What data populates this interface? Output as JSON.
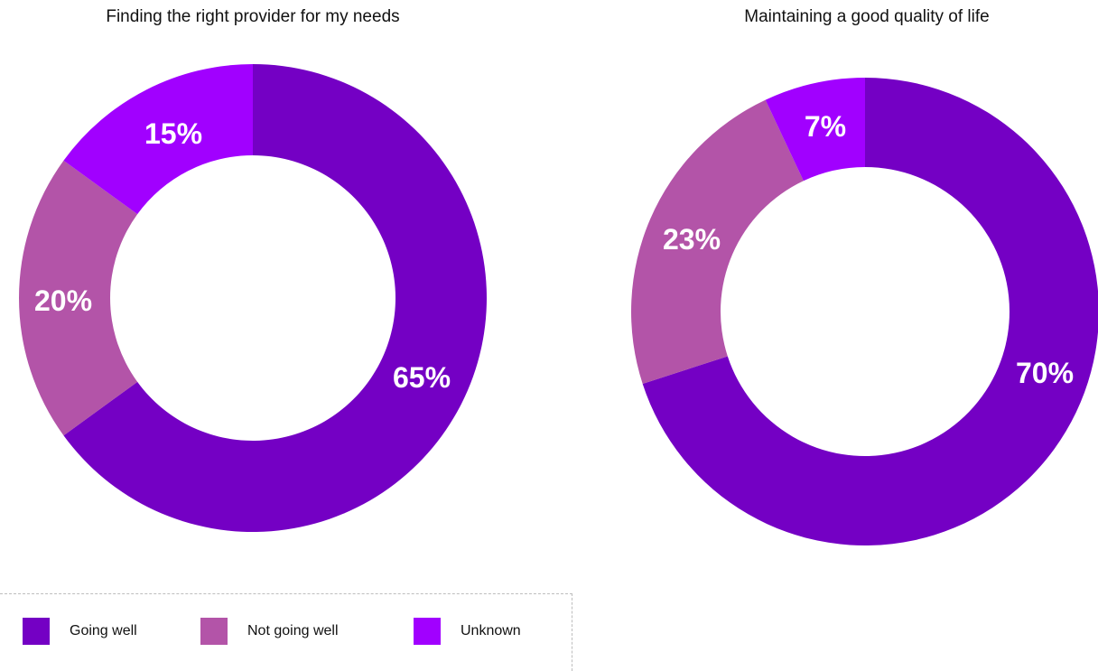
{
  "chart_data": [
    {
      "type": "pie",
      "title": "Finding the right provider for my needs",
      "categories": [
        "Going well",
        "Not going well",
        "Unknown"
      ],
      "values": [
        65,
        20,
        15
      ],
      "labels": [
        "65%",
        "20%",
        "15%"
      ],
      "colors": [
        "#7400C4",
        "#B354A8",
        "#A100FF"
      ]
    },
    {
      "type": "pie",
      "title": "Maintaining a good quality of life",
      "categories": [
        "Going well",
        "Not going well",
        "Unknown"
      ],
      "values": [
        70,
        23,
        7
      ],
      "labels": [
        "70%",
        "23%",
        "7%"
      ],
      "colors": [
        "#7400C4",
        "#B354A8",
        "#A100FF"
      ]
    }
  ],
  "legend": {
    "items": [
      {
        "label": "Going well",
        "color": "#7400C4"
      },
      {
        "label": "Not going well",
        "color": "#B354A8"
      },
      {
        "label": "Unknown",
        "color": "#A100FF"
      }
    ]
  }
}
